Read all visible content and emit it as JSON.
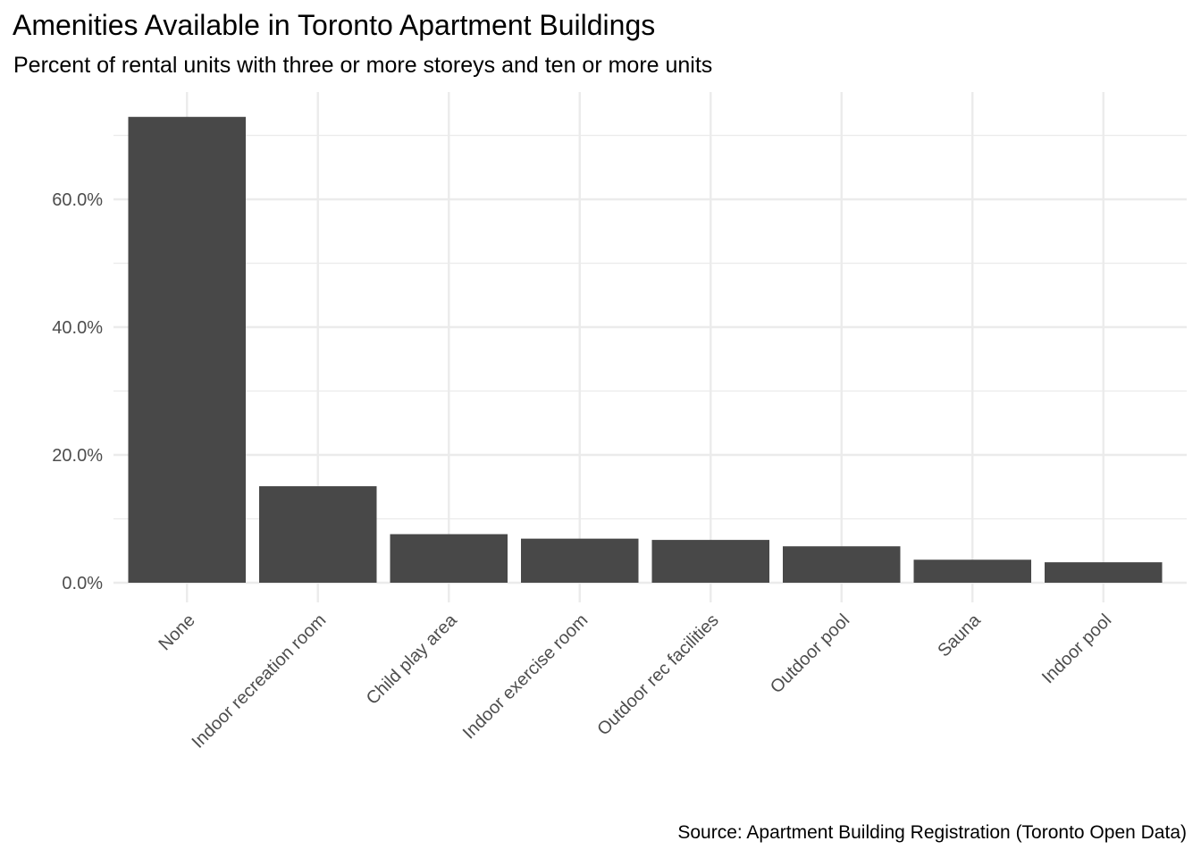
{
  "chart_data": {
    "type": "bar",
    "title": "Amenities Available in Toronto Apartment Buildings",
    "subtitle": "Percent of rental units with three or more storeys and ten or more units",
    "caption": "Source: Apartment Building Registration (Toronto Open Data)",
    "xlabel": "",
    "ylabel": "",
    "categories": [
      "None",
      "Indoor recreation room",
      "Child play area",
      "Indoor exercise room",
      "Outdoor rec facilities",
      "Outdoor pool",
      "Sauna",
      "Indoor pool"
    ],
    "values": [
      72.9,
      15.1,
      7.6,
      6.9,
      6.7,
      5.7,
      3.6,
      3.2
    ],
    "ylim": [
      0,
      76.5
    ],
    "yticks": [
      0,
      20,
      40,
      60
    ],
    "ytick_labels": [
      "0.0%",
      "20.0%",
      "40.0%",
      "60.0%"
    ],
    "grid": true,
    "bar_color": "#484848",
    "grid_color": "#ebebeb"
  }
}
